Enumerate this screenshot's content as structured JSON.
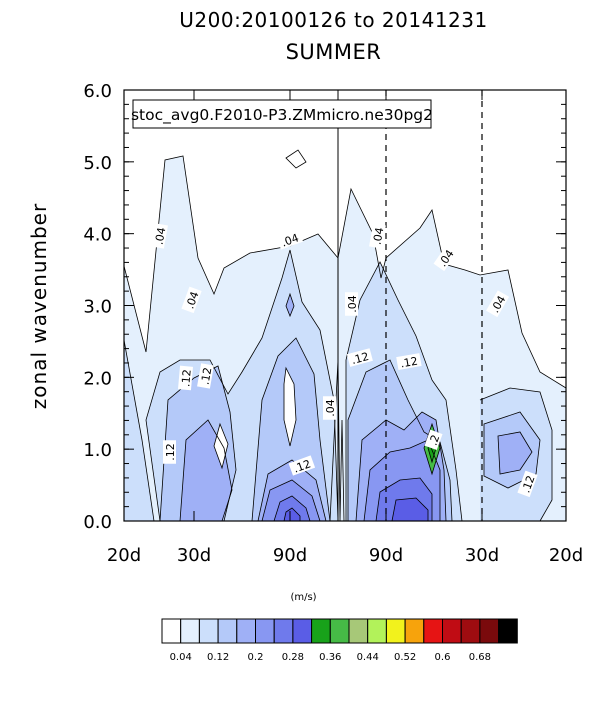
{
  "chart_data": {
    "type": "contour",
    "title_line1": "U200:20100126 to 20141231",
    "title_line2": "SUMMER",
    "legend_text": "stoc_avg0.F2010-P3.ZMmicro.ne30pg2",
    "ylabel": "zonal wavenumber",
    "ylim": [
      0,
      6
    ],
    "yticks": [
      "0.0",
      "1.0",
      "2.0",
      "3.0",
      "4.0",
      "5.0",
      "6.0"
    ],
    "xticks": [
      "20d",
      "30d",
      "90d",
      "90d",
      "30d",
      "20d"
    ],
    "units_label": "(m/s)",
    "contour_labels": [
      ".04",
      ".04",
      ".04",
      ".04",
      ".04",
      ".04",
      ".04",
      ".04",
      ".12",
      ".12",
      ".12",
      ".12",
      ".12",
      ".12",
      ".12",
      ".2"
    ],
    "colorbar": {
      "labels": [
        "0.04",
        "0.12",
        "0.2",
        "0.28",
        "0.36",
        "0.44",
        "0.52",
        "0.6",
        "0.68"
      ],
      "colors": [
        "#ffffff",
        "#e4f0fd",
        "#ccdffb",
        "#b4c9f9",
        "#9fb0f6",
        "#8897f2",
        "#6f7aec",
        "#5a5de6",
        "#18a21a",
        "#46bb46",
        "#a7c878",
        "#b2f25a",
        "#f2f21c",
        "#f7a30c",
        "#e61414",
        "#c00c14",
        "#9e0c10",
        "#7a0a0c",
        "#000000"
      ]
    }
  }
}
